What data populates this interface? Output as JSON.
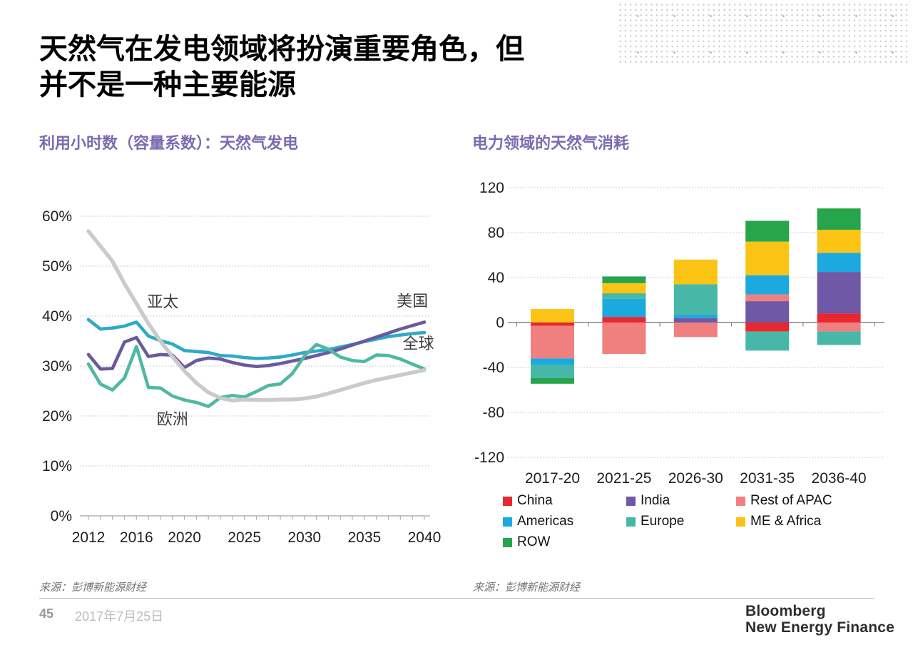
{
  "palette": {
    "accent_purple": "#7b6ab1",
    "grid_dotted": "#c9c9c9",
    "axis_line_left": "#b0b0b0",
    "axis_line_right": "#858585"
  },
  "header": {
    "title": "天然气在发电领域将扮演重要角色，但\n并不是一种主要能源"
  },
  "chart_data": [
    {
      "type": "line",
      "title": "利用小时数（容量系数）：天然气发电",
      "source": "来源：彭博新能源财经",
      "x_start": 2012,
      "x_end": 2040,
      "x_tick_years": [
        2012,
        2016,
        2020,
        2025,
        2030,
        2035,
        2040
      ],
      "y_ticks": [
        "0%",
        "10%",
        "20%",
        "30%",
        "40%",
        "50%",
        "60%"
      ],
      "ylim": [
        0,
        60
      ],
      "grid": "horizontal-dotted",
      "series": [
        {
          "name": "全球",
          "color": "#2fa9c8",
          "width": 4.6,
          "values": [
            39.3,
            37.4,
            37.6,
            38,
            38.8,
            36,
            35.1,
            34.4,
            33.1,
            32.9,
            32.7,
            32.1,
            32,
            31.7,
            31.5,
            31.6,
            31.8,
            32.2,
            32.7,
            33,
            33.3,
            33.8,
            34.3,
            34.9,
            35.4,
            35.9,
            36.2,
            36.5,
            36.7
          ]
        },
        {
          "name": "美国",
          "color": "#695a9f",
          "width": 4.6,
          "values": [
            32.3,
            29.4,
            29.5,
            34.8,
            35.7,
            31.9,
            32.3,
            32.2,
            29.7,
            31.1,
            31.6,
            31.4,
            30.7,
            30.2,
            29.9,
            30.1,
            30.5,
            31,
            31.5,
            32.1,
            32.7,
            33.4,
            34.2,
            35,
            35.8,
            36.6,
            37.4,
            38.1,
            38.8
          ]
        },
        {
          "name": "欧洲",
          "color": "#4fb8a1",
          "width": 4.6,
          "values": [
            30.4,
            26.4,
            25.2,
            27.6,
            33.9,
            25.7,
            25.6,
            24,
            23.2,
            22.7,
            21.9,
            23.7,
            24.1,
            23.8,
            24.9,
            26.1,
            26.4,
            28.5,
            32,
            34.3,
            33.4,
            31.8,
            31.1,
            30.9,
            32.2,
            32.1,
            31.4,
            30.4,
            29.4
          ]
        },
        {
          "name": "亚太",
          "color": "#cacaca",
          "width": 5.4,
          "values": [
            57,
            54,
            51,
            46.5,
            42.5,
            38.5,
            35,
            31.9,
            29,
            26.6,
            24.7,
            23.6,
            23.1,
            23.3,
            23.2,
            23.2,
            23.3,
            23.3,
            23.5,
            23.9,
            24.5,
            25.2,
            25.9,
            26.6,
            27.2,
            27.7,
            28.2,
            28.7,
            29.2
          ]
        }
      ],
      "annotations": [
        {
          "text": "亚太",
          "year": 2018.2,
          "value": 42.9
        },
        {
          "text": "欧洲",
          "year": 2019.0,
          "value": 19.4
        },
        {
          "text": "美国",
          "year": 2039.0,
          "value": 43.1
        },
        {
          "text": "全球",
          "year": 2039.5,
          "value": 34.6
        }
      ]
    },
    {
      "type": "stacked-bar",
      "title": "电力领域的天然气消耗",
      "source": "来源：彭博新能源财经",
      "categories": [
        "2017-20",
        "2021-25",
        "2026-30",
        "2031-35",
        "2036-40"
      ],
      "ylim": [
        -120,
        120
      ],
      "y_ticks": [
        120,
        80,
        40,
        0,
        -40,
        -80,
        -120
      ],
      "grid": "horizontal-dotted",
      "legend_position": "bottom",
      "series": [
        {
          "name": "China",
          "color": "#e7282e",
          "values": [
            -3,
            5,
            0,
            -8,
            8
          ]
        },
        {
          "name": "India",
          "color": "#6f58a5",
          "values": [
            0,
            0,
            4,
            19,
            37
          ]
        },
        {
          "name": "Rest of APAC",
          "color": "#f08080",
          "values": [
            -29,
            -28,
            -13,
            6,
            -8
          ]
        },
        {
          "name": "Americas",
          "color": "#1ba9e0",
          "values": [
            -6,
            16,
            3,
            17,
            17
          ]
        },
        {
          "name": "Europe",
          "color": "#47b8a8",
          "values": [
            -11.5,
            5,
            27,
            -17,
            -12
          ]
        },
        {
          "name": "ME & Africa",
          "color": "#fbc414",
          "values": [
            12,
            9,
            22,
            30,
            20.5
          ]
        },
        {
          "name": "ROW",
          "color": "#27a54b",
          "values": [
            -5,
            6,
            0,
            18.5,
            19
          ]
        }
      ]
    }
  ],
  "footer": {
    "page_number": "45",
    "date": "2017年7月25日",
    "logo_line1": "Bloomberg",
    "logo_line2": "New Energy Finance"
  }
}
